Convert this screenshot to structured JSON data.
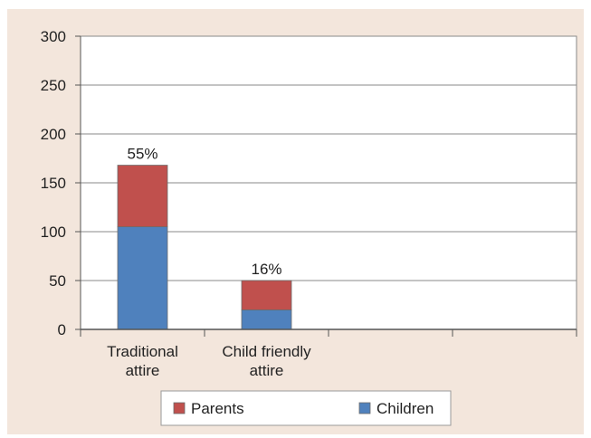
{
  "colors": {
    "frame_background": "#f3e6dc",
    "plot_background": "#ffffff",
    "grid": "#8a8a8a",
    "parents": "#c0504d",
    "children": "#4f81bd"
  },
  "chart_data": {
    "type": "bar",
    "stacked": true,
    "categories": [
      [
        "Traditional",
        "attire"
      ],
      [
        "Child friendly",
        "attire"
      ],
      [],
      []
    ],
    "series": [
      {
        "name": "Children",
        "values": [
          105,
          20,
          0,
          0
        ]
      },
      {
        "name": "Parents",
        "values": [
          63,
          30,
          0,
          0
        ]
      }
    ],
    "bar_labels": [
      "55%",
      "16%",
      "",
      ""
    ],
    "ylim": [
      0,
      300
    ],
    "yticks": [
      0,
      50,
      100,
      150,
      200,
      250,
      300
    ],
    "grid": true,
    "legend_position": "bottom",
    "legend": [
      "Parents",
      "Children"
    ]
  }
}
